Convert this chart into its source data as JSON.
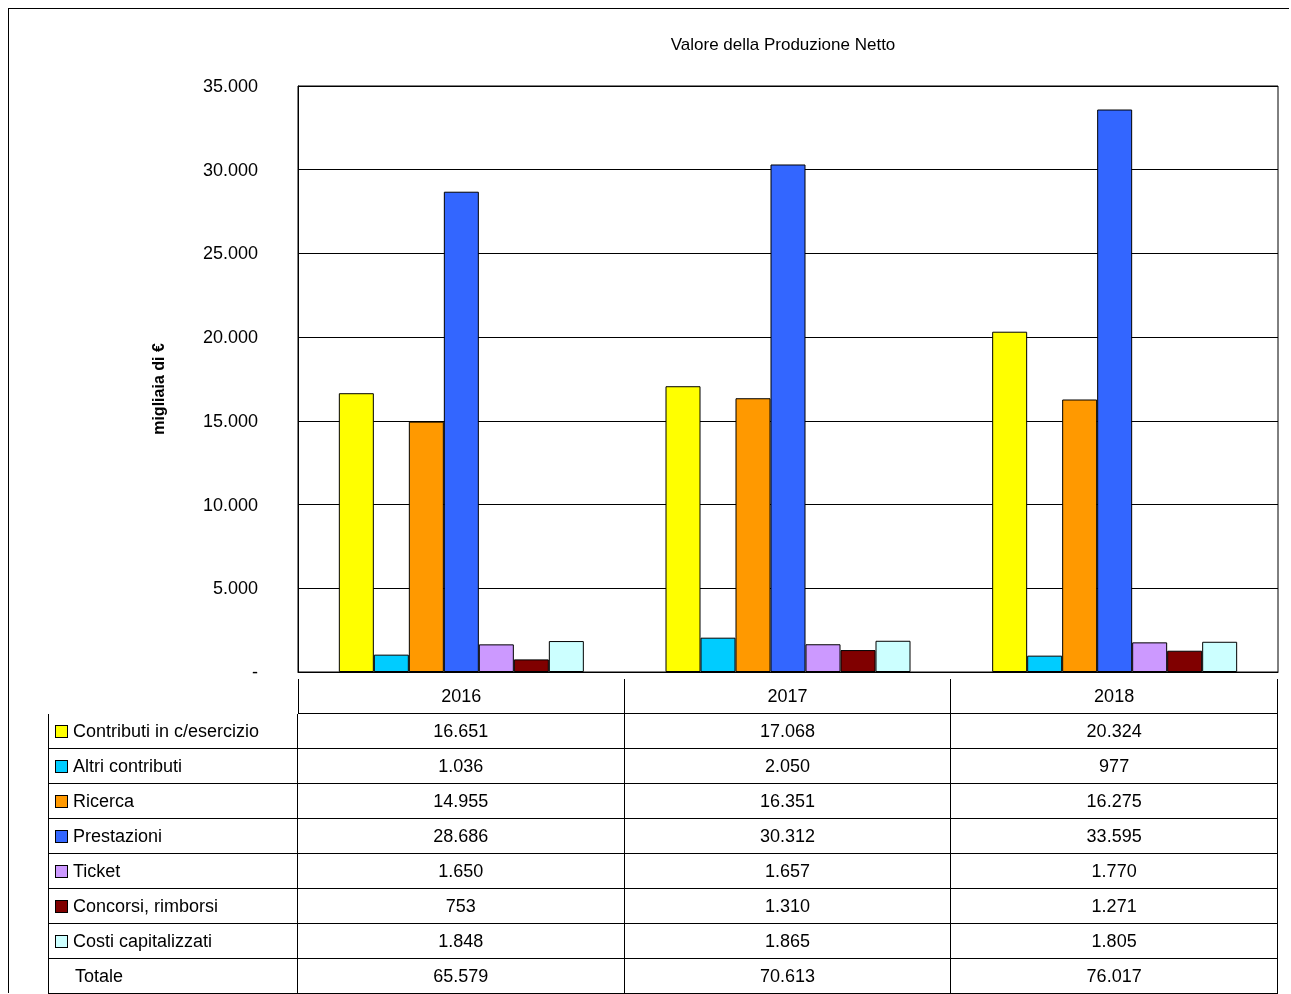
{
  "chart_data": {
    "type": "bar",
    "title": "Valore della Produzione Netto",
    "ylabel": "migliaia di €",
    "categories": [
      "2016",
      "2017",
      "2018"
    ],
    "series": [
      {
        "name": "Contributi in c/esercizio",
        "color": "#ffff00",
        "values": [
          16651,
          17068,
          20324
        ],
        "value_labels": [
          "16.651",
          "17.068",
          "20.324"
        ]
      },
      {
        "name": "Altri contributi",
        "color": "#00ccff",
        "values": [
          1036,
          2050,
          977
        ],
        "value_labels": [
          "1.036",
          "2.050",
          "977"
        ]
      },
      {
        "name": "Ricerca",
        "color": "#ff9900",
        "values": [
          14955,
          16351,
          16275
        ],
        "value_labels": [
          "14.955",
          "16.351",
          "16.275"
        ]
      },
      {
        "name": "Prestazioni",
        "color": "#3366ff",
        "values": [
          28686,
          30312,
          33595
        ],
        "value_labels": [
          "28.686",
          "30.312",
          "33.595"
        ]
      },
      {
        "name": "Ticket",
        "color": "#cc99ff",
        "values": [
          1650,
          1657,
          1770
        ],
        "value_labels": [
          "1.650",
          "1.657",
          "1.770"
        ]
      },
      {
        "name": "Concorsi, rimborsi",
        "color": "#800000",
        "values": [
          753,
          1310,
          1271
        ],
        "value_labels": [
          "753",
          "1.310",
          "1.271"
        ]
      },
      {
        "name": "Costi capitalizzati",
        "color": "#ccffff",
        "values": [
          1848,
          1865,
          1805
        ],
        "value_labels": [
          "1.848",
          "1.865",
          "1.805"
        ]
      }
    ],
    "ylim": [
      0,
      35000
    ],
    "yticks": [
      {
        "value": 0,
        "label": "-"
      },
      {
        "value": 5000,
        "label": "5.000"
      },
      {
        "value": 10000,
        "label": "10.000"
      },
      {
        "value": 15000,
        "label": "15.000"
      },
      {
        "value": 20000,
        "label": "20.000"
      },
      {
        "value": 25000,
        "label": "25.000"
      },
      {
        "value": 30000,
        "label": "30.000"
      },
      {
        "value": 35000,
        "label": "35.000"
      }
    ],
    "grid": "y",
    "legend": "bottom",
    "annotations": [
      "Totale",
      "65.579",
      "70.613",
      "76.017"
    ]
  }
}
